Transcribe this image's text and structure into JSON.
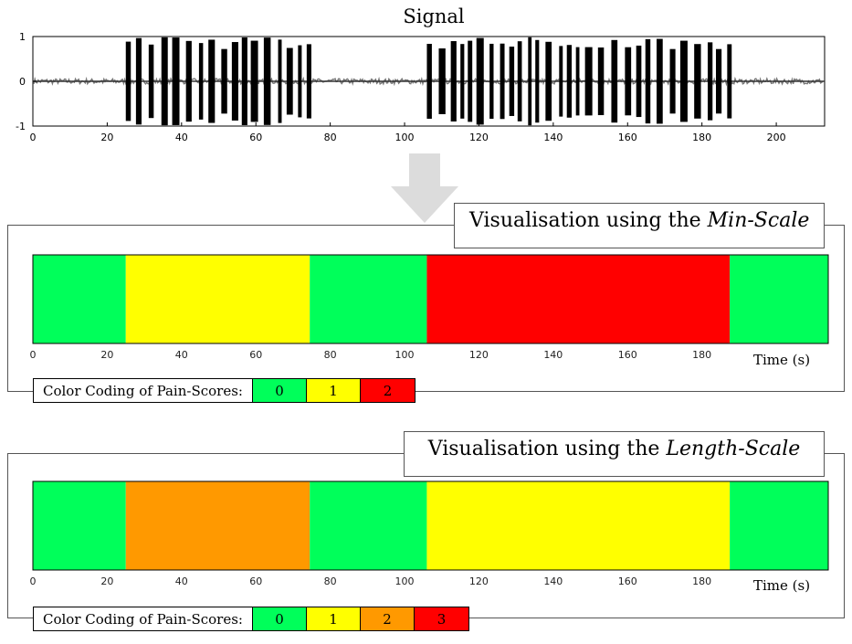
{
  "signal": {
    "title": "Signal",
    "yticks": [
      "1",
      "0",
      "-1"
    ],
    "xticks": [
      "0",
      "20",
      "40",
      "60",
      "80",
      "100",
      "120",
      "140",
      "160",
      "180",
      "200"
    ]
  },
  "min_scale": {
    "title_prefix": "Visualisation using the ",
    "title_italic": "Min-Scale",
    "time_label": "Time (s)",
    "legend_label": "Color Coding of Pain-Scores:",
    "legend": [
      {
        "label": "0",
        "color": "#00ff5a"
      },
      {
        "label": "1",
        "color": "#ffff00"
      },
      {
        "label": "2",
        "color": "#ff0000"
      }
    ]
  },
  "length_scale": {
    "title_prefix": "Visualisation using the ",
    "title_italic": "Length-Scale",
    "time_label": "Time (s)",
    "legend_label": "Color Coding of Pain-Scores:",
    "legend": [
      {
        "label": "0",
        "color": "#00ff5a"
      },
      {
        "label": "1",
        "color": "#ffff00"
      },
      {
        "label": "2",
        "color": "#ff9900"
      },
      {
        "label": "3",
        "color": "#ff0000"
      }
    ]
  },
  "chart_data": [
    {
      "type": "line",
      "title": "Signal",
      "xlabel": "",
      "ylabel": "",
      "xlim": [
        0,
        213
      ],
      "ylim": [
        -1,
        1
      ],
      "bursts": [
        {
          "start": 25,
          "end": 75
        },
        {
          "start": 106,
          "end": 188
        }
      ]
    },
    {
      "type": "heatmap",
      "title": "Visualisation using the Min-Scale",
      "xlabel": "Time (s)",
      "xlim": [
        0,
        214
      ],
      "segments": [
        {
          "start": 0,
          "end": 25,
          "score": 0
        },
        {
          "start": 25,
          "end": 74.5,
          "score": 1
        },
        {
          "start": 74.5,
          "end": 106,
          "score": 0
        },
        {
          "start": 106,
          "end": 187.5,
          "score": 2
        },
        {
          "start": 187.5,
          "end": 214,
          "score": 0
        }
      ]
    },
    {
      "type": "heatmap",
      "title": "Visualisation using the Length-Scale",
      "xlabel": "Time (s)",
      "xlim": [
        0,
        214
      ],
      "segments": [
        {
          "start": 0,
          "end": 25,
          "score": 0
        },
        {
          "start": 25,
          "end": 74.5,
          "score": 2
        },
        {
          "start": 74.5,
          "end": 106,
          "score": 0
        },
        {
          "start": 106,
          "end": 187.5,
          "score": 1
        },
        {
          "start": 187.5,
          "end": 214,
          "score": 0
        }
      ]
    }
  ]
}
